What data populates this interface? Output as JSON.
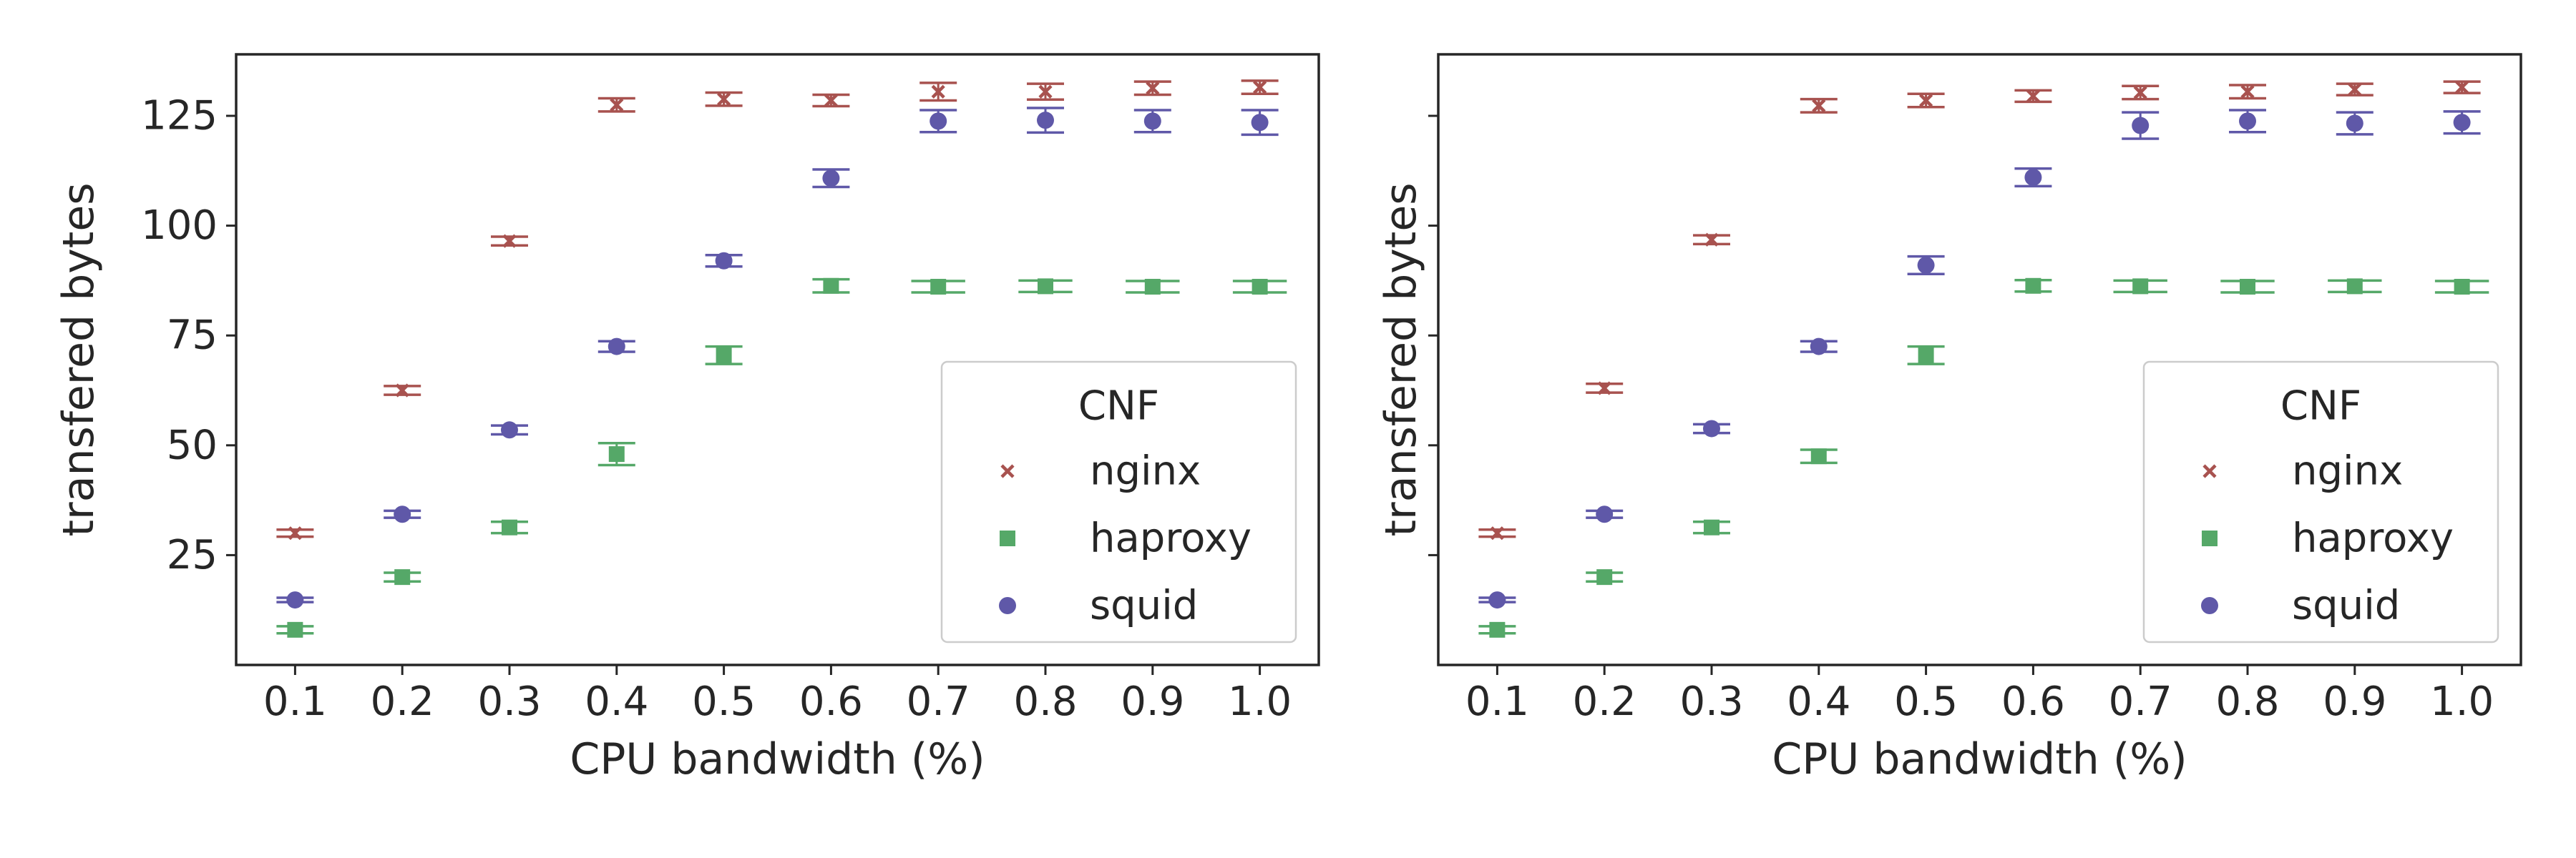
{
  "colors": {
    "nginx": "#A8524F",
    "haproxy": "#55A868",
    "squid": "#5F58A8",
    "axis": "#262626",
    "legend_border": "#cccccc"
  },
  "chart_data": [
    {
      "type": "scatter",
      "xlabel": "CPU bandwidth (%)",
      "ylabel": "transfered bytes",
      "x": [
        0.1,
        0.2,
        0.3,
        0.4,
        0.5,
        0.6,
        0.7,
        0.8,
        0.9,
        1.0
      ],
      "x_ticks": [
        "0.1",
        "0.2",
        "0.3",
        "0.4",
        "0.5",
        "0.6",
        "0.7",
        "0.8",
        "0.9",
        "1.0"
      ],
      "y_ticks": [
        25,
        50,
        75,
        100,
        125
      ],
      "y_tick_labels": [
        "25",
        "50",
        "75",
        "100",
        "125"
      ],
      "ylim": [
        0,
        139
      ],
      "grid": false,
      "legend": {
        "title": "CNF",
        "placement": "lower-right"
      },
      "series": [
        {
          "name": "nginx",
          "marker": "x",
          "values": [
            30,
            62.5,
            96.5,
            127.5,
            128.8,
            128.5,
            130.5,
            130.5,
            131.3,
            131.5
          ],
          "err": [
            0.8,
            1.0,
            1.0,
            1.5,
            1.5,
            1.3,
            2.0,
            1.8,
            1.5,
            1.5
          ]
        },
        {
          "name": "haproxy",
          "marker": "square",
          "values": [
            8,
            20,
            31.3,
            48,
            70.5,
            86.3,
            86.1,
            86.2,
            86.1,
            86.1
          ],
          "err": [
            0.8,
            1.0,
            1.3,
            2.5,
            2.0,
            1.5,
            1.3,
            1.3,
            1.3,
            1.3
          ],
          "err_width": [
            1,
            1,
            1,
            1,
            1,
            1,
            1.45,
            1.45,
            1.45,
            1.45
          ]
        },
        {
          "name": "squid",
          "marker": "circle",
          "values": [
            14.8,
            34.3,
            53.5,
            72.5,
            92,
            110.8,
            123.8,
            124,
            123.8,
            123.5
          ],
          "err": [
            0.5,
            0.8,
            1.0,
            1.2,
            1.3,
            2.0,
            2.5,
            2.8,
            2.5,
            2.8
          ]
        }
      ]
    },
    {
      "type": "scatter",
      "xlabel": "CPU bandwidth (%)",
      "ylabel": "transfered bytes",
      "x": [
        0.1,
        0.2,
        0.3,
        0.4,
        0.5,
        0.6,
        0.7,
        0.8,
        0.9,
        1.0
      ],
      "x_ticks": [
        "0.1",
        "0.2",
        "0.3",
        "0.4",
        "0.5",
        "0.6",
        "0.7",
        "0.8",
        "0.9",
        "1.0"
      ],
      "y_ticks": [
        25,
        50,
        75,
        100,
        125
      ],
      "y_tick_labels": [
        "",
        "",
        "",
        "",
        ""
      ],
      "ylim": [
        0,
        139
      ],
      "grid": false,
      "legend": {
        "title": "CNF",
        "placement": "lower-right"
      },
      "series": [
        {
          "name": "nginx",
          "marker": "x",
          "values": [
            30,
            63,
            96.8,
            127.3,
            128.5,
            129.5,
            130.3,
            130.5,
            131,
            131.5
          ],
          "err": [
            0.8,
            1.0,
            1.0,
            1.5,
            1.5,
            1.3,
            1.5,
            1.5,
            1.3,
            1.3
          ]
        },
        {
          "name": "haproxy",
          "marker": "square",
          "values": [
            8,
            20,
            31.3,
            47.5,
            70.5,
            86.3,
            86.2,
            86.1,
            86.2,
            86.1
          ],
          "err": [
            0.8,
            1.0,
            1.3,
            1.5,
            2.0,
            1.3,
            1.3,
            1.3,
            1.3,
            1.3
          ],
          "err_width": [
            1,
            1,
            1,
            1,
            1,
            1,
            1.45,
            1.45,
            1.45,
            1.45
          ]
        },
        {
          "name": "squid",
          "marker": "circle",
          "values": [
            14.8,
            34.3,
            53.8,
            72.5,
            91,
            111,
            122.8,
            123.8,
            123.3,
            123.5
          ],
          "err": [
            0.5,
            0.8,
            1.0,
            1.2,
            2.0,
            2.0,
            3.0,
            2.5,
            2.5,
            2.5
          ]
        }
      ]
    }
  ]
}
